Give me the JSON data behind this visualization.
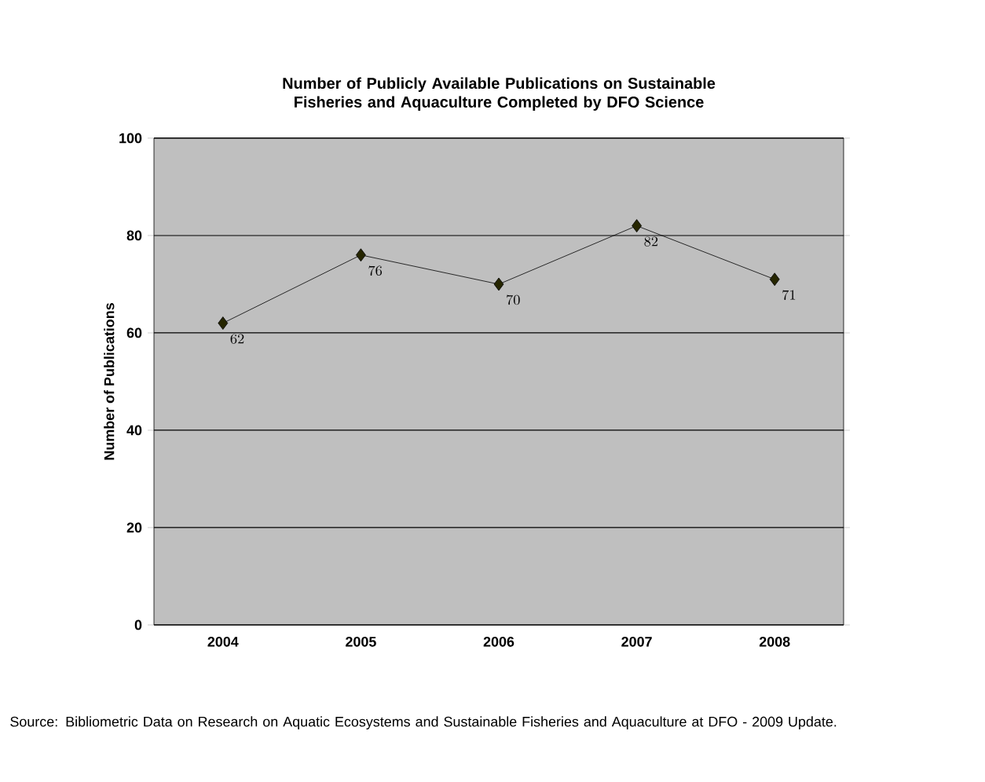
{
  "chart_data": {
    "type": "line",
    "title": "Number of Publicly Available Publications on Sustainable Fisheries and Aquaculture Completed by DFO Science",
    "ylabel": "Number of Publications",
    "categories": [
      "2004",
      "2005",
      "2006",
      "2007",
      "2008"
    ],
    "series": [
      {
        "color": "#000000",
        "values": [
          62,
          76,
          70,
          82,
          71
        ]
      }
    ],
    "ylim": [
      0,
      100
    ],
    "yticks": [
      0,
      20,
      40,
      60,
      80,
      100
    ],
    "grid": "y",
    "marker": "diamond",
    "line_style": "solid",
    "data_labels": true,
    "annotations": [
      "Source: Bibliometric Data on Research on Aquatic Ecosystems and Sustainable Fisheries and Aquaculture at DFO - 2009 Update."
    ]
  }
}
